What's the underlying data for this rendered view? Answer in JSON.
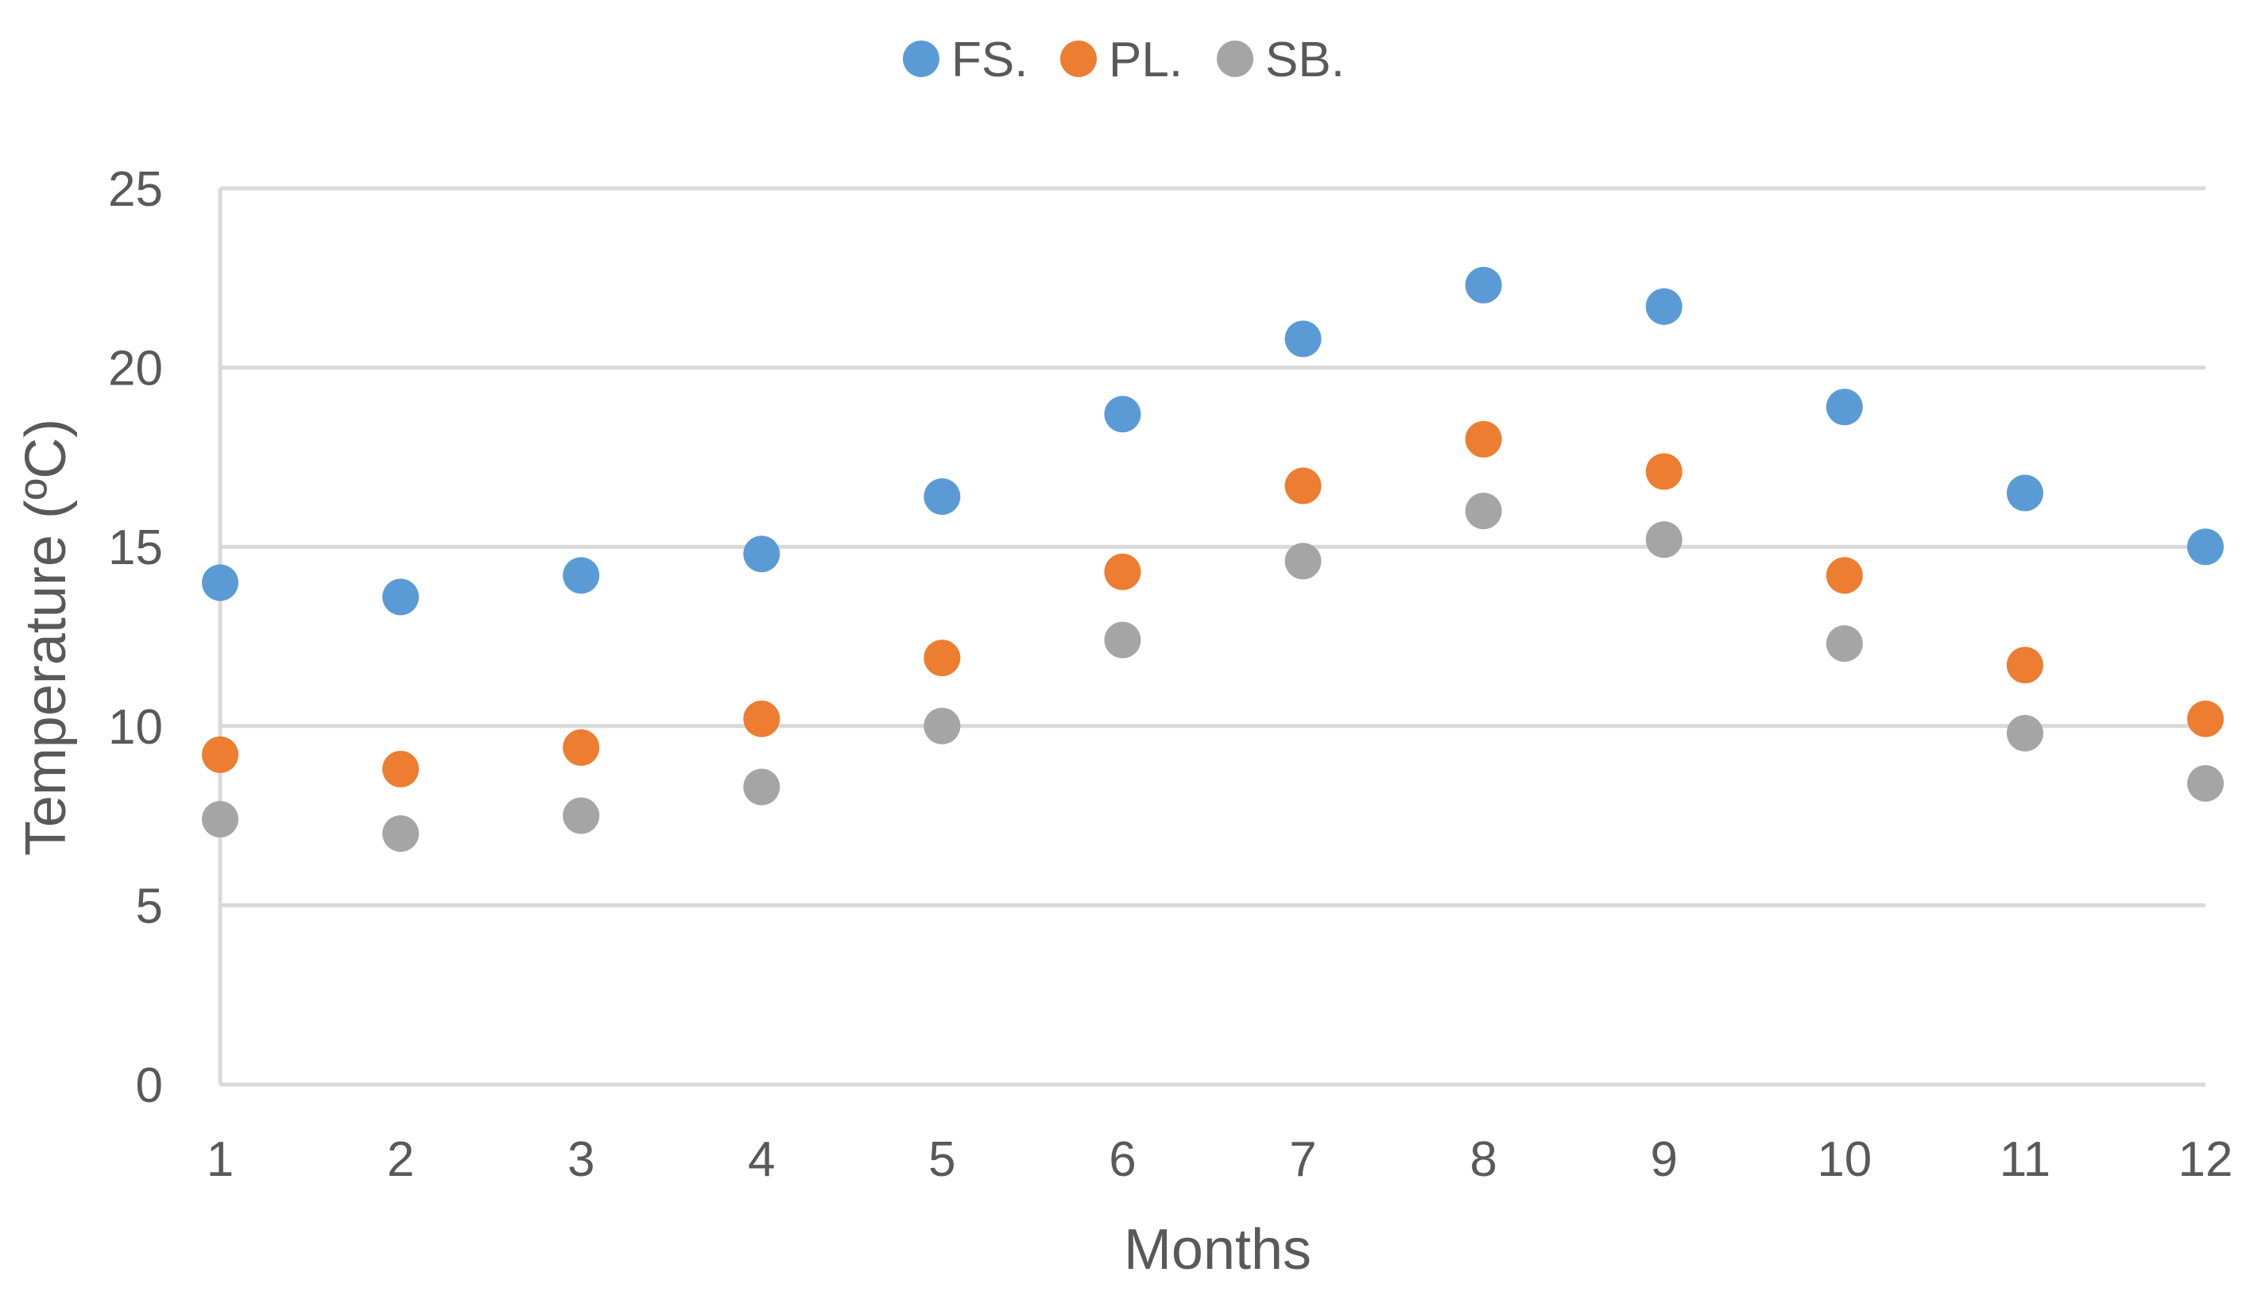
{
  "chart_data": {
    "type": "scatter",
    "title": "",
    "xlabel": "Months",
    "ylabel": "Temperature  (ºC)",
    "x": [
      1,
      2,
      3,
      4,
      5,
      6,
      7,
      8,
      9,
      10,
      11,
      12
    ],
    "xlim": [
      1,
      12
    ],
    "ylim": [
      0,
      25
    ],
    "x_ticks": [
      "1",
      "2",
      "3",
      "4",
      "5",
      "6",
      "7",
      "8",
      "9",
      "10",
      "11",
      "12"
    ],
    "y_ticks": [
      "0",
      "5",
      "10",
      "15",
      "20",
      "25"
    ],
    "y_tick_values": [
      0,
      5,
      10,
      15,
      20,
      25
    ],
    "grid": true,
    "legend_position": "top-center",
    "series": [
      {
        "name": "FS.",
        "color": "#5b9bd5",
        "values": [
          14.0,
          13.6,
          14.2,
          14.8,
          16.4,
          18.7,
          20.8,
          22.3,
          21.7,
          18.9,
          16.5,
          15.0
        ]
      },
      {
        "name": "PL.",
        "color": "#ed7d31",
        "values": [
          9.2,
          8.8,
          9.4,
          10.2,
          11.9,
          14.3,
          16.7,
          18.0,
          17.1,
          14.2,
          11.7,
          10.2
        ]
      },
      {
        "name": "SB.",
        "color": "#a5a5a5",
        "values": [
          7.4,
          7.0,
          7.5,
          8.3,
          10.0,
          12.4,
          14.6,
          16.0,
          15.2,
          12.3,
          9.8,
          8.4
        ]
      }
    ]
  }
}
